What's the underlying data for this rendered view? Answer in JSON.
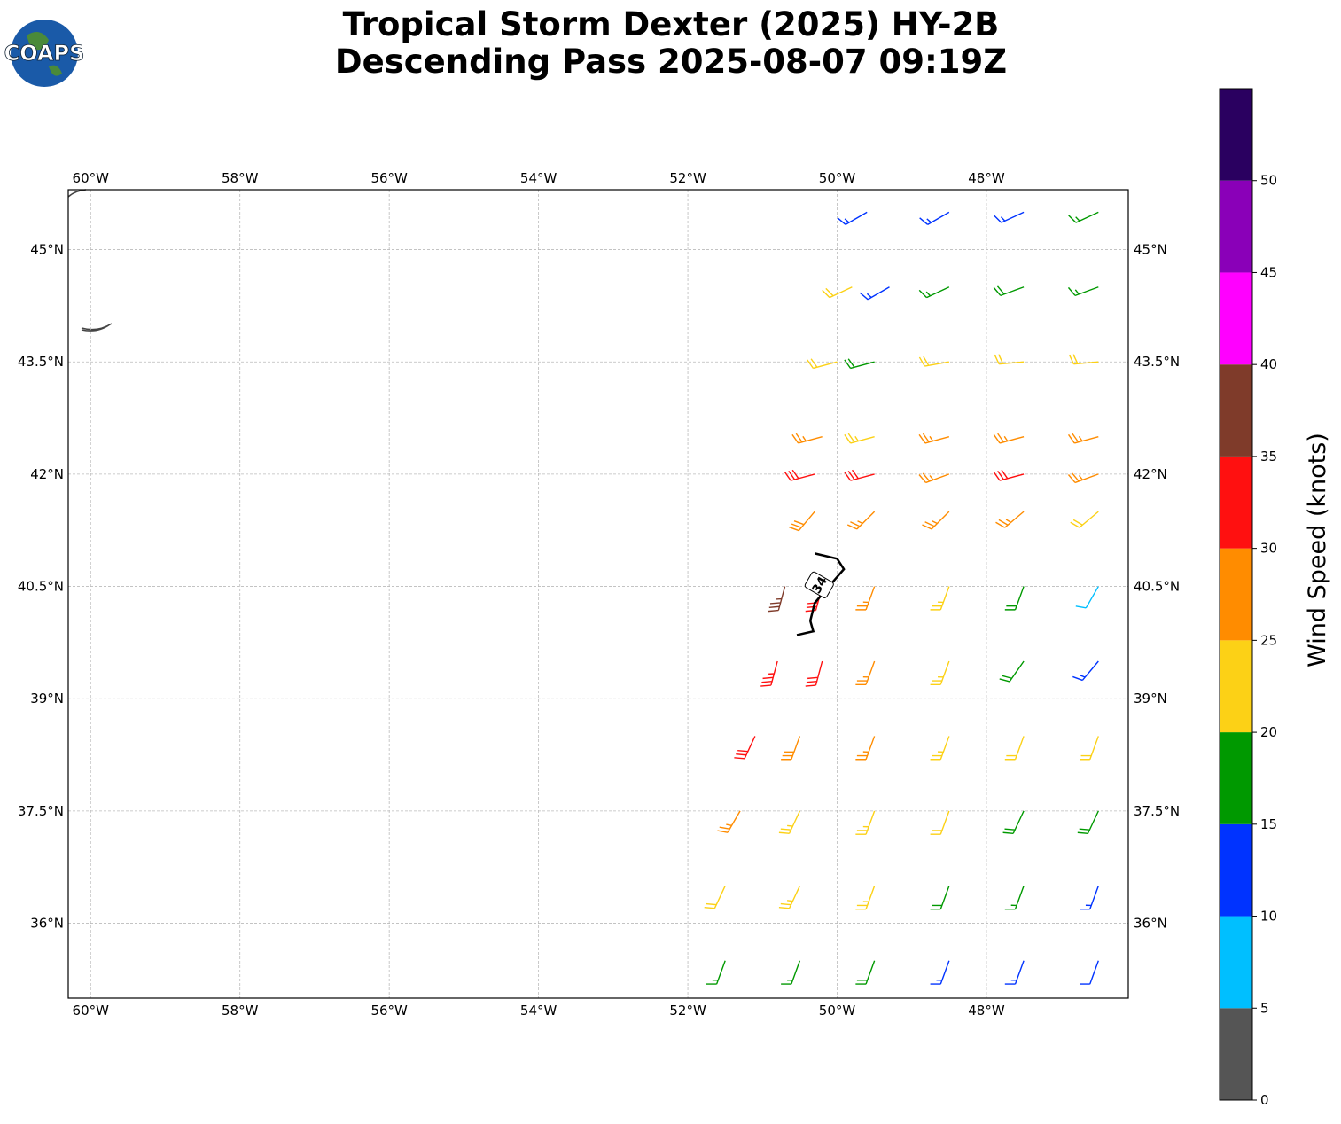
{
  "header": {
    "title": [
      "Tropical Storm Dexter (2025) HY-2B",
      "Descending Pass 2025-08-07 09:19Z"
    ],
    "logo": "COAPS"
  },
  "map": {
    "xlim": [
      -60.3,
      -46.1
    ],
    "ylim": [
      35,
      45.8
    ],
    "grid": true,
    "xticks": [
      {
        "value": -60,
        "label": "60°W"
      },
      {
        "value": -58,
        "label": "58°W"
      },
      {
        "value": -56,
        "label": "56°W"
      },
      {
        "value": -54,
        "label": "54°W"
      },
      {
        "value": -52,
        "label": "52°W"
      },
      {
        "value": -50,
        "label": "50°W"
      },
      {
        "value": -48,
        "label": "48°W"
      }
    ],
    "yticks": [
      {
        "value": 45,
        "label": "45°N"
      },
      {
        "value": 43.5,
        "label": "43.5°N"
      },
      {
        "value": 42,
        "label": "42°N"
      },
      {
        "value": 40.5,
        "label": "40.5°N"
      },
      {
        "value": 39,
        "label": "39°N"
      },
      {
        "value": 37.5,
        "label": "37.5°N"
      },
      {
        "value": 36,
        "label": "36°N"
      }
    ],
    "barbs": [
      [
        -51.5,
        35.5,
        17,
        200
      ],
      [
        -50.5,
        35.5,
        17,
        200
      ],
      [
        -49.5,
        35.5,
        18,
        200
      ],
      [
        -48.5,
        35.5,
        13,
        200
      ],
      [
        -47.5,
        35.5,
        13,
        200
      ],
      [
        -46.5,
        35.5,
        12,
        200
      ],
      [
        -51.5,
        36.5,
        22,
        205
      ],
      [
        -50.5,
        36.5,
        23,
        205
      ],
      [
        -49.5,
        36.5,
        23,
        200
      ],
      [
        -48.5,
        36.5,
        18,
        200
      ],
      [
        -47.5,
        36.5,
        17,
        200
      ],
      [
        -46.5,
        36.5,
        14,
        200
      ],
      [
        -51.3,
        37.5,
        27,
        210
      ],
      [
        -50.5,
        37.5,
        24,
        205
      ],
      [
        -49.5,
        37.5,
        23,
        200
      ],
      [
        -48.5,
        37.5,
        22,
        200
      ],
      [
        -47.5,
        37.5,
        19,
        205
      ],
      [
        -46.5,
        37.5,
        18,
        205
      ],
      [
        -51.1,
        38.5,
        31,
        205
      ],
      [
        -50.5,
        38.5,
        28,
        200
      ],
      [
        -49.5,
        38.5,
        27,
        200
      ],
      [
        -48.5,
        38.5,
        24,
        200
      ],
      [
        -47.5,
        38.5,
        22,
        200
      ],
      [
        -46.5,
        38.5,
        21,
        200
      ],
      [
        -50.8,
        39.5,
        33,
        195
      ],
      [
        -50.2,
        39.5,
        32,
        195
      ],
      [
        -49.5,
        39.5,
        27,
        200
      ],
      [
        -48.5,
        39.5,
        23,
        200
      ],
      [
        -47.5,
        39.5,
        19,
        215
      ],
      [
        -46.5,
        39.5,
        13,
        220
      ],
      [
        -50.7,
        40.5,
        37,
        195
      ],
      [
        -50.2,
        40.5,
        31,
        195
      ],
      [
        -49.5,
        40.5,
        27,
        200
      ],
      [
        -48.5,
        40.5,
        23,
        200
      ],
      [
        -47.5,
        40.5,
        18,
        200
      ],
      [
        -46.5,
        40.5,
        9,
        210
      ],
      [
        -50.3,
        41.5,
        28,
        220
      ],
      [
        -49.5,
        41.5,
        27,
        225
      ],
      [
        -48.5,
        41.5,
        26,
        225
      ],
      [
        -47.5,
        41.5,
        26,
        230
      ],
      [
        -46.5,
        41.5,
        22,
        230
      ],
      [
        -50.3,
        42,
        32,
        255
      ],
      [
        -49.5,
        42,
        31,
        255
      ],
      [
        -48.5,
        42,
        27,
        250
      ],
      [
        -47.5,
        42,
        31,
        255
      ],
      [
        -46.5,
        42,
        27,
        250
      ],
      [
        -50.2,
        42.5,
        26,
        255
      ],
      [
        -49.5,
        42.5,
        23,
        255
      ],
      [
        -48.5,
        42.5,
        26,
        255
      ],
      [
        -47.5,
        42.5,
        26,
        255
      ],
      [
        -46.5,
        42.5,
        27,
        255
      ],
      [
        -50,
        43.5,
        22,
        255
      ],
      [
        -49.5,
        43.5,
        18,
        255
      ],
      [
        -48.5,
        43.5,
        21,
        260
      ],
      [
        -47.5,
        43.5,
        22,
        265
      ],
      [
        -46.5,
        43.5,
        22,
        265
      ],
      [
        -49.8,
        44.5,
        21,
        245
      ],
      [
        -49.3,
        44.5,
        14,
        240
      ],
      [
        -48.5,
        44.5,
        17,
        245
      ],
      [
        -47.5,
        44.5,
        18,
        250
      ],
      [
        -46.5,
        44.5,
        17,
        250
      ],
      [
        -49.6,
        45.5,
        13,
        240
      ],
      [
        -48.5,
        45.5,
        13,
        240
      ],
      [
        -47.5,
        45.5,
        14,
        245
      ],
      [
        -46.5,
        45.5,
        16,
        245
      ]
    ],
    "contour": {
      "level": 34,
      "label_at": [
        -50.24,
        40.52
      ],
      "points": [
        [
          -50.3,
          40.94
        ],
        [
          -50.0,
          40.87
        ],
        [
          -49.91,
          40.73
        ],
        [
          -50.12,
          40.49
        ],
        [
          -50.3,
          40.28
        ],
        [
          -50.36,
          40.04
        ],
        [
          -50.32,
          39.9
        ],
        [
          -50.54,
          39.85
        ]
      ]
    }
  },
  "colorbar": {
    "label": "Wind Speed (knots)",
    "lim": [
      0,
      55
    ],
    "bounds": [
      0,
      5,
      10,
      15,
      20,
      25,
      30,
      35,
      40,
      45,
      50,
      55
    ],
    "colors": [
      "#555555",
      "#00bfff",
      "#0033ff",
      "#009900",
      "#fcd116",
      "#ff8c00",
      "#ff1010",
      "#7f3b2a",
      "#ff00ff",
      "#8a00b8",
      "#2a0060"
    ],
    "ticks": [
      0,
      5,
      10,
      15,
      20,
      25,
      30,
      35,
      40,
      45,
      50
    ]
  }
}
